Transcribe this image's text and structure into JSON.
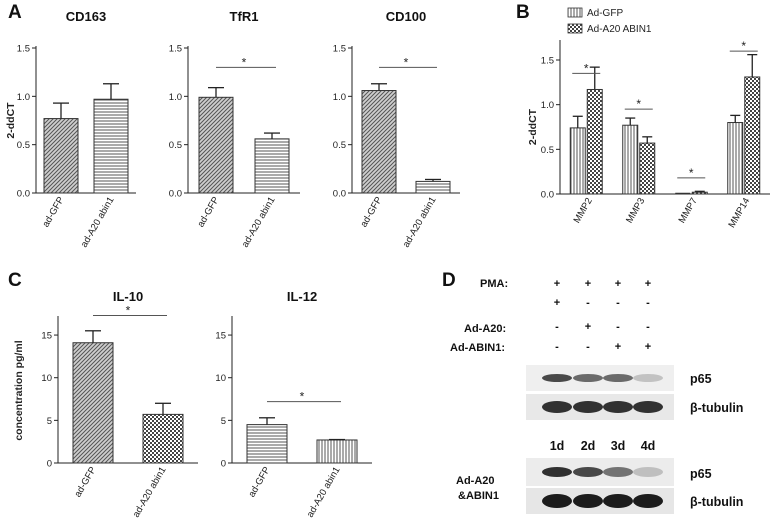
{
  "panels": {
    "A": "A",
    "B": "B",
    "C": "C",
    "D": "D"
  },
  "chart_data": [
    {
      "id": "a1",
      "type": "bar",
      "title": "CD163",
      "ylabel": "2-ddCT",
      "ylim": [
        0,
        1.5
      ],
      "yticks": [
        "0.0",
        "0.5",
        "1.0",
        "1.5"
      ],
      "categories": [
        "ad-GFP",
        "ad-A20 abin1"
      ],
      "values": [
        0.77,
        0.97
      ],
      "errors": [
        0.16,
        0.16
      ],
      "patterns": [
        "diag",
        "hlines"
      ],
      "sig": null
    },
    {
      "id": "a2",
      "type": "bar",
      "title": "TfR1",
      "ylabel": "",
      "ylim": [
        0,
        1.5
      ],
      "yticks": [
        "0.0",
        "0.5",
        "1.0",
        "1.5"
      ],
      "categories": [
        "ad-GFP",
        "ad-A20 abin1"
      ],
      "values": [
        0.99,
        0.56
      ],
      "errors": [
        0.1,
        0.06
      ],
      "patterns": [
        "diag",
        "hlines"
      ],
      "sig": {
        "from": 0,
        "to": 1,
        "y": 1.3,
        "label": "*"
      }
    },
    {
      "id": "a3",
      "type": "bar",
      "title": "CD100",
      "ylabel": "",
      "ylim": [
        0,
        1.5
      ],
      "yticks": [
        "0.0",
        "0.5",
        "1.0",
        "1.5"
      ],
      "categories": [
        "ad-GFP",
        "ad-A20 abin1"
      ],
      "values": [
        1.06,
        0.12
      ],
      "errors": [
        0.07,
        0.02
      ],
      "patterns": [
        "diag",
        "hlines"
      ],
      "sig": {
        "from": 0,
        "to": 1,
        "y": 1.3,
        "label": "*"
      }
    },
    {
      "id": "b",
      "type": "bar",
      "title": "",
      "ylabel": "2-ddCT",
      "ylim": [
        0,
        1.5
      ],
      "yticks": [
        "0.0",
        "0.5",
        "1.0",
        "1.5"
      ],
      "categories": [
        "MMP2",
        "MMP3",
        "MMP7",
        "MMP14"
      ],
      "series": [
        {
          "name": "Ad-GFP",
          "values": [
            0.74,
            0.77,
            0.0,
            0.8
          ],
          "errors": [
            0.13,
            0.08,
            0.0,
            0.08
          ],
          "pattern": "vlines"
        },
        {
          "name": "Ad-A20 ABIN1",
          "values": [
            1.17,
            0.57,
            0.02,
            1.31
          ],
          "errors": [
            0.25,
            0.07,
            0.01,
            0.25
          ],
          "pattern": "checker"
        }
      ],
      "sigs": [
        {
          "index": 0,
          "y": 1.35,
          "label": "*"
        },
        {
          "index": 1,
          "y": 0.95,
          "label": "*"
        },
        {
          "index": 2,
          "y": 0.18,
          "label": "*"
        },
        {
          "index": 3,
          "y": 1.6,
          "label": "*"
        }
      ]
    },
    {
      "id": "c1",
      "type": "bar",
      "title": "IL-10",
      "ylabel": "concentration pg/ml",
      "ylim": [
        0,
        17
      ],
      "yticks": [
        "0",
        "5",
        "10",
        "15"
      ],
      "categories": [
        "ad-GFP",
        "ad-A20 abin1"
      ],
      "values": [
        14.1,
        5.7
      ],
      "errors": [
        1.4,
        1.3
      ],
      "patterns": [
        "diag",
        "checker"
      ],
      "sig": {
        "from": 0,
        "to": 1,
        "y": 17.3,
        "label": "*"
      }
    },
    {
      "id": "c2",
      "type": "bar",
      "title": "IL-12",
      "ylabel": "",
      "ylim": [
        0,
        17
      ],
      "yticks": [
        "0",
        "5",
        "10",
        "15"
      ],
      "categories": [
        "ad-GFP",
        "ad-A20 abin1"
      ],
      "values": [
        4.5,
        2.7
      ],
      "errors": [
        0.8,
        0.05
      ],
      "patterns": [
        "hlines",
        "vlines"
      ],
      "sig": {
        "from": 0,
        "to": 1,
        "y": 7.2,
        "label": "*"
      }
    }
  ],
  "western": {
    "conditions": [
      {
        "label": "PMA:",
        "marks": [
          "+",
          "+",
          "+",
          "+"
        ]
      },
      {
        "label": "",
        "marks": [
          "+",
          "-",
          "-",
          "-"
        ]
      },
      {
        "label": "Ad-A20:",
        "marks": [
          "-",
          "+",
          "-",
          "-"
        ]
      },
      {
        "label": "Ad-ABIN1:",
        "marks": [
          "-",
          "-",
          "+",
          "+"
        ]
      }
    ],
    "blots_top": {
      "p65": "p65",
      "tubulin": "β-tubulin",
      "p65_intensity": [
        0.75,
        0.6,
        0.6,
        0.2
      ],
      "tubulin_intensity": [
        0.85,
        0.85,
        0.85,
        0.85
      ]
    },
    "days": [
      "1d",
      "2d",
      "3d",
      "4d"
    ],
    "group_label_1": "Ad-A20",
    "group_label_2": "&ABIN1",
    "blots_bottom": {
      "p65": "p65",
      "tubulin": "β-tubulin",
      "p65_intensity": [
        0.85,
        0.75,
        0.55,
        0.2
      ],
      "tubulin_intensity": [
        0.95,
        0.95,
        0.95,
        0.95
      ]
    }
  }
}
